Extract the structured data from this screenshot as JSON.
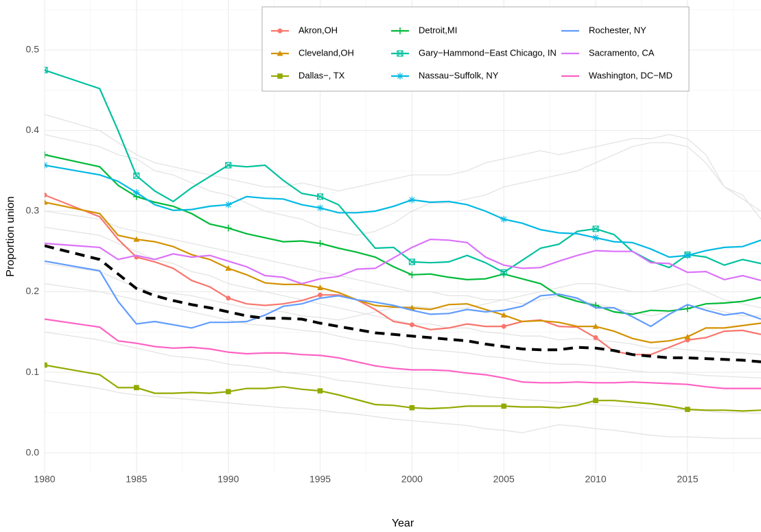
{
  "chart_data": {
    "type": "line",
    "x_label": "Year",
    "y_label": "Proportion union",
    "x": [
      1980,
      1983,
      1984,
      1985,
      1986,
      1987,
      1988,
      1989,
      1990,
      1991,
      1992,
      1993,
      1994,
      1995,
      1996,
      1997,
      1998,
      1999,
      2000,
      2001,
      2002,
      2003,
      2004,
      2005,
      2006,
      2007,
      2008,
      2009,
      2010,
      2011,
      2012,
      2013,
      2014,
      2015,
      2016,
      2017,
      2018,
      2019
    ],
    "xlim": [
      1980,
      2019
    ],
    "ylim": [
      -0.025,
      0.562
    ],
    "xticks": [
      1980,
      1985,
      1990,
      1995,
      2000,
      2005,
      2010,
      2015
    ],
    "yticks": [
      {
        "value": 0,
        "label": "0.0"
      },
      0.1,
      0.2,
      0.3,
      0.4,
      0.5
    ],
    "x_minor_ticks": [
      1982.5,
      1987.5,
      1992.5,
      1997.5,
      2002.5,
      2007.5,
      2012.5,
      2017.5
    ],
    "y_minor_ticks": [
      0.05,
      0.15,
      0.25,
      0.35,
      0.45,
      0.55
    ],
    "grid": true,
    "marker_every": 5,
    "background_color": "#e3e3e3",
    "background_lines": [
      [
        0.42,
        0.4,
        0.385,
        0.37,
        0.36,
        0.355,
        0.35,
        0.345,
        0.34,
        0.335,
        0.33,
        0.33,
        0.335,
        0.33,
        0.325,
        0.33,
        0.335,
        0.34,
        0.345,
        0.345,
        0.345,
        0.35,
        0.36,
        0.365,
        0.37,
        0.375,
        0.37,
        0.375,
        0.38,
        0.385,
        0.39,
        0.39,
        0.395,
        0.39,
        0.37,
        0.33,
        0.32,
        0.29
      ],
      [
        0.395,
        0.38,
        0.37,
        0.365,
        0.35,
        0.345,
        0.335,
        0.325,
        0.32,
        0.31,
        0.3,
        0.295,
        0.29,
        0.28,
        0.275,
        0.27,
        0.275,
        0.285,
        0.3,
        0.31,
        0.31,
        0.315,
        0.32,
        0.33,
        0.335,
        0.34,
        0.345,
        0.35,
        0.36,
        0.37,
        0.38,
        0.385,
        0.385,
        0.38,
        0.36,
        0.33,
        0.315,
        0.3
      ],
      [
        0.3,
        0.29,
        0.28,
        0.275,
        0.27,
        0.265,
        0.26,
        0.255,
        0.25,
        0.245,
        0.24,
        0.235,
        0.23,
        0.225,
        0.22,
        0.215,
        0.21,
        0.205,
        0.2,
        0.2,
        0.195,
        0.195,
        0.19,
        0.19,
        0.185,
        0.19,
        0.195,
        0.19,
        0.185,
        0.18,
        0.175,
        0.17,
        0.175,
        0.18,
        0.18,
        0.175,
        0.17,
        0.17
      ],
      [
        0.28,
        0.27,
        0.26,
        0.25,
        0.24,
        0.235,
        0.225,
        0.22,
        0.21,
        0.205,
        0.2,
        0.195,
        0.19,
        0.185,
        0.18,
        0.175,
        0.17,
        0.165,
        0.16,
        0.16,
        0.155,
        0.155,
        0.15,
        0.148,
        0.145,
        0.145,
        0.14,
        0.142,
        0.14,
        0.138,
        0.135,
        0.13,
        0.13,
        0.128,
        0.126,
        0.125,
        0.124,
        0.122
      ],
      [
        0.21,
        0.2,
        0.195,
        0.19,
        0.185,
        0.18,
        0.175,
        0.17,
        0.165,
        0.16,
        0.158,
        0.155,
        0.152,
        0.15,
        0.145,
        0.14,
        0.138,
        0.135,
        0.13,
        0.128,
        0.126,
        0.124,
        0.12,
        0.118,
        0.115,
        0.112,
        0.11,
        0.11,
        0.108,
        0.105,
        0.102,
        0.1,
        0.1,
        0.098,
        0.096,
        0.095,
        0.094,
        0.093
      ],
      [
        0.15,
        0.14,
        0.135,
        0.13,
        0.125,
        0.12,
        0.118,
        0.115,
        0.11,
        0.108,
        0.105,
        0.1,
        0.098,
        0.095,
        0.09,
        0.088,
        0.085,
        0.082,
        0.08,
        0.078,
        0.075,
        0.073,
        0.07,
        0.068,
        0.066,
        0.065,
        0.063,
        0.062,
        0.06,
        0.058,
        0.057,
        0.055,
        0.054,
        0.053,
        0.052,
        0.05,
        0.05,
        0.049
      ],
      [
        0.09,
        0.08,
        0.075,
        0.072,
        0.07,
        0.068,
        0.066,
        0.064,
        0.062,
        0.06,
        0.058,
        0.056,
        0.055,
        0.053,
        0.05,
        0.048,
        0.045,
        0.042,
        0.04,
        0.038,
        0.036,
        0.034,
        0.03,
        0.028,
        0.025,
        0.03,
        0.035,
        0.033,
        0.03,
        0.028,
        0.025,
        0.022,
        0.02,
        0.02,
        0.019,
        0.018,
        0.018,
        0.018
      ],
      [
        0.235,
        0.225,
        0.215,
        0.205,
        0.2,
        0.198,
        0.195,
        0.19,
        0.185,
        0.18,
        0.178,
        0.175,
        0.17,
        0.168,
        0.165,
        0.17,
        0.175,
        0.18,
        0.182,
        0.18,
        0.178,
        0.18,
        0.185,
        0.19,
        0.195,
        0.2,
        0.205,
        0.21,
        0.21,
        0.205,
        0.2,
        0.2,
        0.205,
        0.21,
        0.2,
        0.19,
        0.185,
        0.18
      ]
    ],
    "reference_line": {
      "color": "#000000",
      "dashed": true,
      "values": [
        0.257,
        0.24,
        0.222,
        0.204,
        0.195,
        0.189,
        0.184,
        0.18,
        0.175,
        0.17,
        0.167,
        0.167,
        0.166,
        0.161,
        0.157,
        0.153,
        0.149,
        0.147,
        0.145,
        0.143,
        0.141,
        0.139,
        0.135,
        0.132,
        0.129,
        0.128,
        0.128,
        0.131,
        0.13,
        0.127,
        0.122,
        0.12,
        0.118,
        0.118,
        0.117,
        0.116,
        0.115,
        0.113
      ]
    },
    "series": [
      {
        "name": "Akron,OH",
        "color": "#F8766D",
        "marker": "circle",
        "values": [
          0.32,
          0.293,
          0.265,
          0.243,
          0.237,
          0.229,
          0.214,
          0.206,
          0.192,
          0.185,
          0.183,
          0.185,
          0.189,
          0.196,
          0.196,
          0.19,
          0.178,
          0.163,
          0.159,
          0.153,
          0.155,
          0.16,
          0.157,
          0.157,
          0.163,
          0.165,
          0.157,
          0.156,
          0.143,
          0.126,
          0.122,
          0.122,
          0.131,
          0.14,
          0.143,
          0.151,
          0.152,
          0.147
        ]
      },
      {
        "name": "Cleveland,OH",
        "color": "#D39200",
        "marker": "triangle",
        "values": [
          0.311,
          0.297,
          0.27,
          0.265,
          0.262,
          0.256,
          0.246,
          0.24,
          0.229,
          0.221,
          0.211,
          0.209,
          0.209,
          0.205,
          0.199,
          0.19,
          0.183,
          0.181,
          0.18,
          0.178,
          0.184,
          0.185,
          0.178,
          0.171,
          0.163,
          0.164,
          0.162,
          0.157,
          0.157,
          0.151,
          0.142,
          0.137,
          0.139,
          0.144,
          0.155,
          0.155,
          0.158,
          0.161
        ]
      },
      {
        "name": "Dallas−, TX",
        "color": "#93AA00",
        "marker": "square",
        "values": [
          0.109,
          0.097,
          0.081,
          0.081,
          0.074,
          0.074,
          0.075,
          0.074,
          0.076,
          0.08,
          0.08,
          0.082,
          0.079,
          0.077,
          0.072,
          0.066,
          0.06,
          0.059,
          0.056,
          0.055,
          0.056,
          0.058,
          0.058,
          0.058,
          0.057,
          0.057,
          0.056,
          0.059,
          0.065,
          0.065,
          0.063,
          0.061,
          0.058,
          0.054,
          0.053,
          0.053,
          0.052,
          0.053
        ]
      },
      {
        "name": "Detroit,MI",
        "color": "#00BA38",
        "marker": "plus",
        "values": [
          0.37,
          0.355,
          0.332,
          0.318,
          0.311,
          0.306,
          0.297,
          0.284,
          0.279,
          0.272,
          0.267,
          0.262,
          0.263,
          0.26,
          0.254,
          0.249,
          0.243,
          0.231,
          0.221,
          0.222,
          0.218,
          0.215,
          0.216,
          0.222,
          0.216,
          0.21,
          0.195,
          0.188,
          0.183,
          0.175,
          0.172,
          0.177,
          0.176,
          0.179,
          0.185,
          0.186,
          0.188,
          0.193
        ]
      },
      {
        "name": "Gary−Hammond−East Chicago, IN",
        "color": "#00C19F",
        "marker": "boxsquare",
        "values": [
          0.475,
          0.452,
          0.4,
          0.344,
          0.325,
          0.312,
          0.329,
          0.343,
          0.357,
          0.355,
          0.357,
          0.338,
          0.322,
          0.318,
          0.308,
          0.281,
          0.254,
          0.255,
          0.237,
          0.236,
          0.237,
          0.245,
          0.236,
          0.224,
          0.239,
          0.254,
          0.259,
          0.275,
          0.278,
          0.271,
          0.25,
          0.238,
          0.23,
          0.246,
          0.243,
          0.233,
          0.24,
          0.235
        ]
      },
      {
        "name": "Nassau−Suffolk, NY",
        "color": "#00B9E3",
        "marker": "star",
        "values": [
          0.357,
          0.345,
          0.337,
          0.323,
          0.308,
          0.301,
          0.302,
          0.306,
          0.308,
          0.318,
          0.316,
          0.315,
          0.308,
          0.304,
          0.298,
          0.298,
          0.3,
          0.306,
          0.314,
          0.311,
          0.312,
          0.308,
          0.3,
          0.29,
          0.285,
          0.277,
          0.273,
          0.272,
          0.267,
          0.262,
          0.261,
          0.253,
          0.243,
          0.245,
          0.251,
          0.255,
          0.256,
          0.264
        ]
      },
      {
        "name": "Rochester, NY",
        "color": "#619CFF",
        "marker": "none",
        "values": [
          0.238,
          0.226,
          0.188,
          0.16,
          0.163,
          0.159,
          0.155,
          0.162,
          0.162,
          0.163,
          0.171,
          0.182,
          0.185,
          0.192,
          0.195,
          0.19,
          0.187,
          0.183,
          0.177,
          0.172,
          0.173,
          0.178,
          0.175,
          0.177,
          0.182,
          0.195,
          0.197,
          0.192,
          0.18,
          0.18,
          0.169,
          0.157,
          0.172,
          0.184,
          0.177,
          0.171,
          0.174,
          0.166
        ]
      },
      {
        "name": "Sacramento, CA",
        "color": "#DB72FB",
        "marker": "none",
        "values": [
          0.26,
          0.255,
          0.24,
          0.245,
          0.24,
          0.247,
          0.243,
          0.245,
          0.238,
          0.231,
          0.22,
          0.218,
          0.21,
          0.216,
          0.219,
          0.228,
          0.229,
          0.242,
          0.255,
          0.265,
          0.264,
          0.261,
          0.243,
          0.233,
          0.229,
          0.23,
          0.238,
          0.245,
          0.251,
          0.25,
          0.25,
          0.236,
          0.235,
          0.224,
          0.225,
          0.215,
          0.22,
          0.214
        ]
      },
      {
        "name": "Washington, DC−MD",
        "color": "#FF61C3",
        "marker": "none",
        "values": [
          0.166,
          0.156,
          0.139,
          0.136,
          0.132,
          0.13,
          0.131,
          0.129,
          0.125,
          0.123,
          0.124,
          0.124,
          0.122,
          0.121,
          0.118,
          0.113,
          0.108,
          0.105,
          0.103,
          0.103,
          0.102,
          0.099,
          0.097,
          0.093,
          0.088,
          0.087,
          0.087,
          0.088,
          0.087,
          0.087,
          0.088,
          0.087,
          0.086,
          0.085,
          0.082,
          0.08,
          0.08,
          0.08
        ]
      }
    ]
  }
}
